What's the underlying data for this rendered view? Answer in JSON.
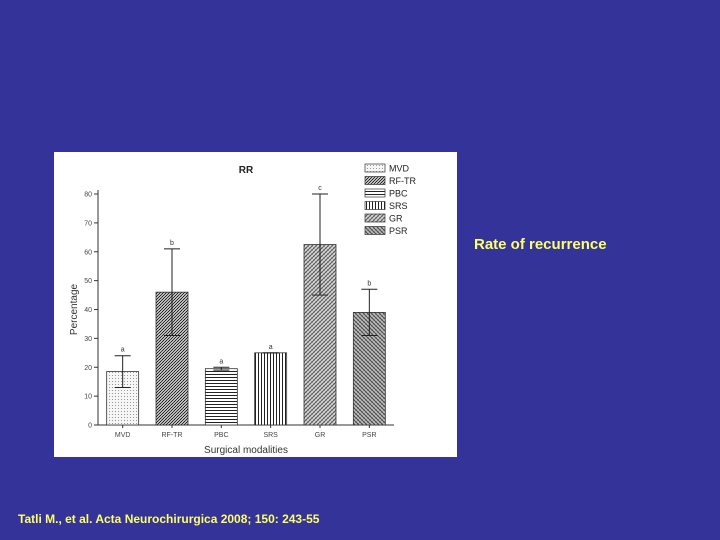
{
  "slide": {
    "side_note": "Rate of recurrence",
    "citation": "Tatli M., et al. Acta Neurochirurgica 2008; 150: 243-55",
    "background_color": "#333399",
    "text_color": "#ffff66"
  },
  "chart_data": {
    "type": "bar",
    "title": "RR",
    "xlabel": "Surgical modalities",
    "ylabel": "Percentage",
    "categories": [
      "MVD",
      "RF-TR",
      "PBC",
      "SRS",
      "GR",
      "PSR"
    ],
    "values": [
      18.5,
      46,
      19.5,
      25,
      62.5,
      39
    ],
    "error_upper": [
      24,
      61,
      20,
      25,
      80,
      47
    ],
    "error_lower": [
      13,
      31,
      19,
      25,
      45,
      31
    ],
    "significance": [
      "a",
      "b",
      "a",
      "a",
      "c",
      "b"
    ],
    "ylim": [
      0,
      80
    ],
    "yticks": [
      0,
      10,
      20,
      30,
      40,
      50,
      60,
      70,
      80
    ],
    "legend": [
      "MVD",
      "RF-TR",
      "PBC",
      "SRS",
      "GR",
      "PSR"
    ],
    "legend_position": "top-right",
    "grid": false
  }
}
